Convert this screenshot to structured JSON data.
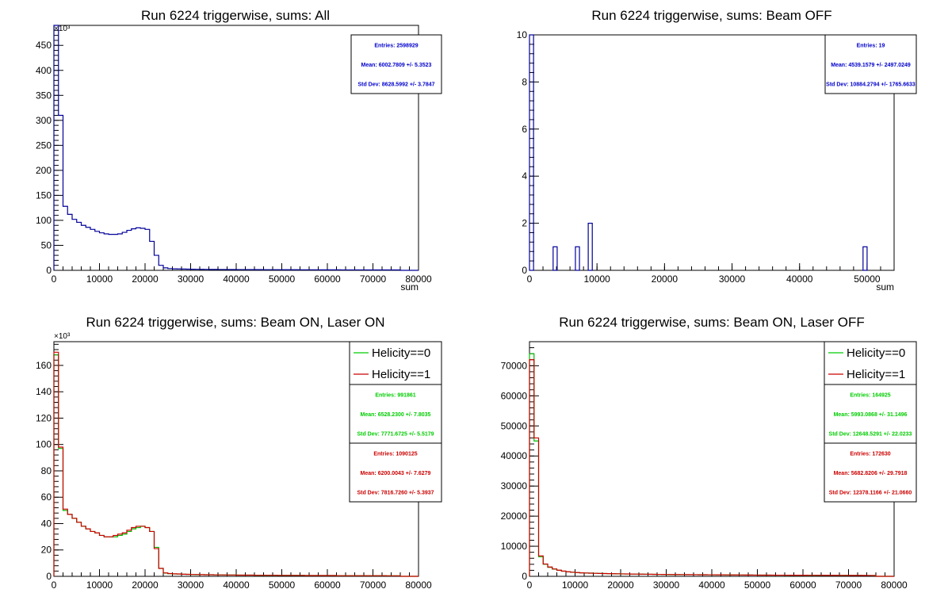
{
  "chart_data": [
    {
      "type": "bar",
      "title": "Run 6224 triggerwise, sums: All",
      "xlabel": "sum",
      "ylabel": "",
      "y_multiplier": "×10³",
      "xlim": [
        0,
        80000
      ],
      "ylim": [
        0,
        490
      ],
      "xticks": [
        "0",
        "10000",
        "20000",
        "30000",
        "40000",
        "50000",
        "60000",
        "70000",
        "80000"
      ],
      "yticks": [
        "0",
        "50",
        "100",
        "150",
        "200",
        "250",
        "300",
        "350",
        "400",
        "450"
      ],
      "bin_width": 1000,
      "series": [
        {
          "color": "#000099",
          "values": [
            490,
            310,
            128,
            112,
            102,
            96,
            90,
            86,
            82,
            78,
            75,
            73,
            72,
            72,
            73,
            76,
            80,
            83,
            85,
            84,
            82,
            58,
            30,
            10,
            5,
            3.5,
            3,
            2.8,
            2.6,
            2.4,
            2.2,
            2.1,
            2,
            1.9,
            1.8,
            1.8,
            1.7,
            1.7,
            1.6,
            1.6,
            1.5,
            1.5,
            1.5,
            1.4,
            1.4,
            1.4,
            1.3,
            1.3,
            1.3,
            1.3,
            1.2,
            1.2,
            1.2,
            1.2,
            1.1,
            1.1,
            1.1,
            1.1,
            1.0,
            1.0,
            1.0,
            1.0,
            1.0,
            0.9,
            0.9,
            0.9,
            0.9,
            0.9,
            0.9,
            0.8,
            0.8,
            0.8,
            0.8,
            0.8,
            0.8,
            0.8,
            0,
            0,
            0,
            0
          ]
        }
      ],
      "stats": [
        {
          "color": "#0000cc",
          "lines": [
            "Entries: 2598929",
            "Mean: 6002.7809 +/- 5.3523",
            "Std Dev: 8628.5992 +/- 3.7847"
          ]
        }
      ]
    },
    {
      "type": "bar",
      "title": "Run 6224 triggerwise, sums: Beam OFF",
      "xlabel": "sum",
      "ylabel": "",
      "xlim": [
        0,
        54000
      ],
      "ylim": [
        0,
        10
      ],
      "xticks": [
        "0",
        "10000",
        "20000",
        "30000",
        "40000",
        "50000"
      ],
      "yticks": [
        "0",
        "2",
        "4",
        "6",
        "8",
        "10"
      ],
      "bin_width": 600,
      "bins": [
        {
          "x": 0,
          "value": 10
        },
        {
          "x": 3500,
          "value": 1
        },
        {
          "x": 6800,
          "value": 1
        },
        {
          "x": 8700,
          "value": 2
        },
        {
          "x": 49400,
          "value": 1
        }
      ],
      "series": [
        {
          "color": "#000099"
        }
      ],
      "stats": [
        {
          "color": "#0000cc",
          "lines": [
            "Entries: 19",
            "Mean: 4539.1579 +/- 2497.0249",
            "Std Dev: 10884.2794 +/- 1765.6633"
          ]
        }
      ]
    },
    {
      "type": "bar",
      "title": "Run 6224 triggerwise, sums: Beam ON, Laser ON",
      "xlabel": "",
      "ylabel": "",
      "y_multiplier": "×10³",
      "xlim": [
        0,
        80000
      ],
      "ylim": [
        0,
        178
      ],
      "xticks": [
        "0",
        "10000",
        "20000",
        "30000",
        "40000",
        "50000",
        "60000",
        "70000",
        "80000"
      ],
      "yticks": [
        "0",
        "20",
        "40",
        "60",
        "80",
        "100",
        "120",
        "140",
        "160"
      ],
      "bin_width": 1000,
      "legend": [
        {
          "name": "Helicity==0",
          "color": "#00cc00"
        },
        {
          "name": "Helicity==1",
          "color": "#cc0000"
        }
      ],
      "series": [
        {
          "name": "Helicity==0",
          "color": "#00bb00",
          "values": [
            168,
            97,
            50,
            47,
            44,
            41,
            38,
            36,
            34,
            33,
            31,
            30,
            30,
            30,
            31,
            32,
            34,
            36,
            37,
            38,
            37,
            34,
            22,
            6,
            2.5,
            2,
            1.8,
            1.7,
            1.6,
            1.5,
            1.4,
            1.3,
            1.3,
            1.2,
            1.2,
            1.1,
            1.1,
            1.0,
            1.0,
            1.0,
            0.9,
            0.9,
            0.9,
            0.9,
            0.8,
            0.8,
            0.8,
            0.8,
            0.8,
            0.7,
            0.7,
            0.7,
            0.7,
            0.7,
            0.7,
            0.6,
            0.6,
            0.6,
            0.6,
            0.6,
            0.6,
            0.6,
            0.5,
            0.5,
            0.5,
            0.5,
            0.5,
            0.5,
            0.5,
            0.5,
            0.5,
            0.5,
            0.5,
            0.4,
            0.4,
            0.4,
            0,
            0,
            0,
            0
          ]
        },
        {
          "name": "Helicity==1",
          "color": "#cc0000",
          "values": [
            170,
            98,
            51,
            47,
            44,
            41,
            38,
            36,
            34,
            33,
            31,
            30,
            30,
            31,
            32,
            33,
            35,
            37,
            38,
            38,
            37,
            34,
            21,
            6,
            2.6,
            2.1,
            1.9,
            1.8,
            1.6,
            1.5,
            1.4,
            1.4,
            1.3,
            1.2,
            1.2,
            1.1,
            1.1,
            1.1,
            1.0,
            1.0,
            0.9,
            0.9,
            0.9,
            0.9,
            0.8,
            0.8,
            0.8,
            0.8,
            0.8,
            0.7,
            0.7,
            0.7,
            0.7,
            0.7,
            0.7,
            0.6,
            0.6,
            0.6,
            0.6,
            0.6,
            0.6,
            0.6,
            0.5,
            0.5,
            0.5,
            0.5,
            0.5,
            0.5,
            0.5,
            0.5,
            0.5,
            0.5,
            0.5,
            0.4,
            0.4,
            0.4,
            0,
            0,
            0,
            0
          ]
        }
      ],
      "stats": [
        {
          "color": "#00cc00",
          "lines": [
            "Entries: 991861",
            "Mean: 6528.2300 +/- 7.8035",
            "Std Dev: 7771.6725 +/- 5.5179"
          ]
        },
        {
          "color": "#cc0000",
          "lines": [
            "Entries: 1090125",
            "Mean: 6200.0043 +/- 7.6279",
            "Std Dev: 7816.7260 +/- 5.3937"
          ]
        }
      ]
    },
    {
      "type": "bar",
      "title": "Run 6224 triggerwise, sums: Beam ON, Laser OFF",
      "xlabel": "",
      "ylabel": "",
      "xlim": [
        0,
        80000
      ],
      "ylim": [
        0,
        78000
      ],
      "xticks": [
        "0",
        "10000",
        "20000",
        "30000",
        "40000",
        "50000",
        "60000",
        "70000",
        "80000"
      ],
      "yticks": [
        "0",
        "10000",
        "20000",
        "30000",
        "40000",
        "50000",
        "60000",
        "70000"
      ],
      "bin_width": 1000,
      "legend": [
        {
          "name": "Helicity==0",
          "color": "#00cc00"
        },
        {
          "name": "Helicity==1",
          "color": "#cc0000"
        }
      ],
      "series": [
        {
          "name": "Helicity==0",
          "color": "#00bb00",
          "values": [
            74000,
            45000,
            6500,
            4000,
            3000,
            2400,
            2000,
            1700,
            1500,
            1350,
            1250,
            1150,
            1100,
            1050,
            1000,
            950,
            920,
            890,
            860,
            830,
            800,
            780,
            760,
            740,
            720,
            700,
            680,
            660,
            640,
            620,
            600,
            590,
            580,
            570,
            560,
            550,
            540,
            530,
            520,
            510,
            500,
            490,
            480,
            470,
            460,
            450,
            440,
            430,
            420,
            410,
            400,
            395,
            390,
            385,
            380,
            375,
            370,
            365,
            360,
            355,
            350,
            345,
            340,
            335,
            330,
            325,
            320,
            315,
            310,
            305,
            300,
            295,
            290,
            285,
            280,
            270,
            0,
            0,
            0,
            0
          ]
        },
        {
          "name": "Helicity==1",
          "color": "#cc0000",
          "values": [
            72000,
            46000,
            6800,
            4100,
            3100,
            2450,
            2050,
            1750,
            1520,
            1370,
            1260,
            1160,
            1110,
            1060,
            1010,
            960,
            930,
            895,
            865,
            835,
            805,
            785,
            765,
            745,
            725,
            705,
            685,
            665,
            645,
            625,
            605,
            595,
            585,
            575,
            565,
            555,
            545,
            535,
            525,
            515,
            505,
            495,
            485,
            475,
            465,
            455,
            445,
            435,
            425,
            415,
            405,
            400,
            395,
            390,
            385,
            380,
            375,
            370,
            365,
            360,
            355,
            350,
            345,
            340,
            335,
            330,
            325,
            320,
            315,
            310,
            305,
            300,
            295,
            290,
            285,
            275,
            0,
            0,
            0,
            0
          ]
        }
      ],
      "stats": [
        {
          "color": "#00cc00",
          "lines": [
            "Entries: 164925",
            "Mean: 5993.0868 +/- 31.1496",
            "Std Dev: 12648.5291 +/- 22.0233"
          ]
        },
        {
          "color": "#cc0000",
          "lines": [
            "Entries: 172630",
            "Mean: 5682.8206 +/- 29.7918",
            "Std Dev: 12378.1166 +/- 21.0660"
          ]
        }
      ]
    }
  ]
}
